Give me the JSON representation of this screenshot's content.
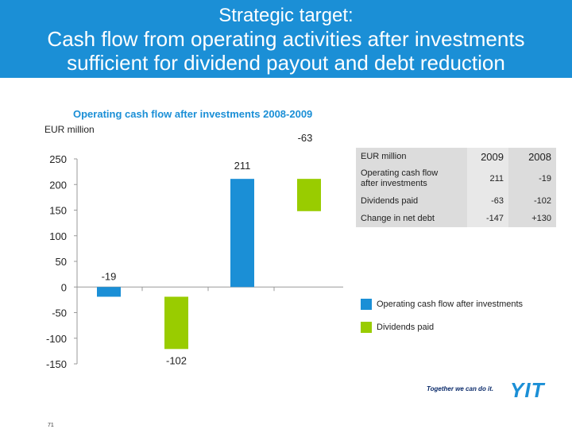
{
  "header": {
    "line1": "Strategic target:",
    "line2": "Cash flow from operating activities after investments",
    "line3": "sufficient for dividend payout and debt reduction"
  },
  "subtitle": "Operating cash flow after investments 2008-2009",
  "unit": "EUR million",
  "chart_data": {
    "type": "bar",
    "series": [
      {
        "name": "Operating cash flow after investments",
        "color": "#1b8fd6",
        "values": [
          -19,
          211
        ]
      },
      {
        "name": "Dividends paid",
        "color": "#99cc00",
        "values": [
          -102,
          -63
        ]
      }
    ],
    "bars": [
      {
        "series": "Operating cash flow after investments",
        "label": "-19",
        "start": 0,
        "end": -19
      },
      {
        "series": "Dividends paid",
        "label": "-102",
        "start": -19,
        "end": -121
      },
      {
        "series": "Operating cash flow after investments",
        "label": "211",
        "start": 0,
        "end": 211
      },
      {
        "series": "Dividends paid",
        "label": "-63",
        "start": 211,
        "end": 148
      }
    ],
    "yticks": [
      "250",
      "200",
      "150",
      "100",
      "50",
      "0",
      "-50",
      "-100",
      "-150"
    ],
    "ylim": [
      -150,
      250
    ],
    "grid": false
  },
  "table": {
    "header": [
      "EUR million",
      "2009",
      "2008"
    ],
    "rows": [
      {
        "label_1": "Operating cash flow",
        "label_2": "after investments",
        "v2009": "211",
        "v2008": "-19"
      },
      {
        "label_1": "Dividends paid",
        "label_2": "",
        "v2009": "-63",
        "v2008": "-102"
      },
      {
        "label_1": "Change in net debt",
        "label_2": "",
        "v2009": "-147",
        "v2008": "+130"
      }
    ]
  },
  "legend": [
    {
      "label": "Operating cash flow after investments",
      "color": "#1b8fd6"
    },
    {
      "label": "Dividends paid",
      "color": "#99cc00"
    }
  ],
  "footer": {
    "slogan": "Together we can do it.",
    "logo": "YIT",
    "page": "71"
  }
}
